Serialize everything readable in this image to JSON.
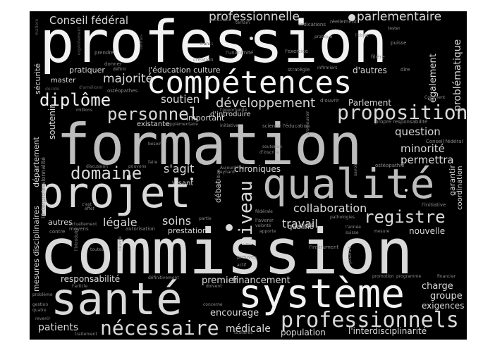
{
  "cloud": {
    "background": "#000000",
    "colors": {
      "bright": "#f2f2f2",
      "light": "#d9d9d9",
      "mid": "#bdbdbd",
      "dim": "#8c8c8c",
      "faint": "#5e5e5e"
    },
    "words": [
      "profession",
      "formation",
      "commission",
      "projet",
      "qualité",
      "santé",
      "système",
      "compétences",
      "professionnels",
      "nécessaire",
      "personnel",
      "proposition",
      "développement",
      "domaine",
      "diplôme",
      "registre",
      "niveau",
      "collaboration",
      "Conseil fédéral",
      "professionnelle",
      "parlementaire",
      "majorité",
      "soutien",
      "s'agit",
      "soins",
      "légale",
      "travail",
      "minorité",
      "question",
      "permettra",
      "patients",
      "médicale",
      "encourage",
      "responsabilité",
      "premier",
      "financement",
      "charge",
      "groupe",
      "exigences",
      "population",
      "l'interdisciplinarité",
      "prestations",
      "qualifié",
      "nouvelle",
      "chroniques",
      "autres",
      "visant",
      "existante",
      "important",
      "d'introduire",
      "l'éducation culture",
      "pratiquer",
      "master",
      "d'autres",
      "Parlement",
      "également",
      "problématique",
      "soutenir",
      "garantir",
      "coordination",
      "mesures disciplinaires",
      "département",
      "sécurité",
      "l'interprofessionnalité",
      "débat",
      "prendre",
      "donner",
      "définir",
      "création",
      "l'unanimité",
      "l'exercice",
      "stratégie",
      "infirmiers",
      "dire",
      "terrain",
      "indications",
      "réellement",
      "tester",
      "l'objet",
      "puisse",
      "pratique",
      "d'ouvrir",
      "filière",
      "Comment",
      "propre responsabilité",
      "Conseil fédéral",
      "l'initiative",
      "ostéopathie",
      "ostéopathes",
      "millions",
      "supplémentaire",
      "initiative",
      "science l'éducation",
      "l'opportunité",
      "besoin",
      "soutenue",
      "d'inscrire",
      "promouvoir",
      "savoir",
      "discussion",
      "pouvons",
      "faire",
      "Aujourd'hui",
      "Reynard",
      "condition",
      "effet",
      "c'est",
      "autorisation",
      "partie",
      "l'avenir",
      "volonté",
      "apporte",
      "pathologies",
      "l'année",
      "suisse",
      "fédérale",
      "mesure",
      "contre",
      "moyens",
      "actuellement",
      "toutes",
      "l'introduire",
      "oeuvre",
      "preuves",
      "actif",
      "pourrait",
      "l'instrument",
      "définitivement",
      "promotion",
      "programme",
      "financier",
      "l'article",
      "doivent",
      "concerne",
      "problème",
      "gestion",
      "quatre",
      "revenir",
      "traitement",
      "titulaires",
      "matière",
      "francs",
      "termes",
      "exploitement",
      "d'améliorer",
      "décide",
      "conseiller"
    ]
  }
}
